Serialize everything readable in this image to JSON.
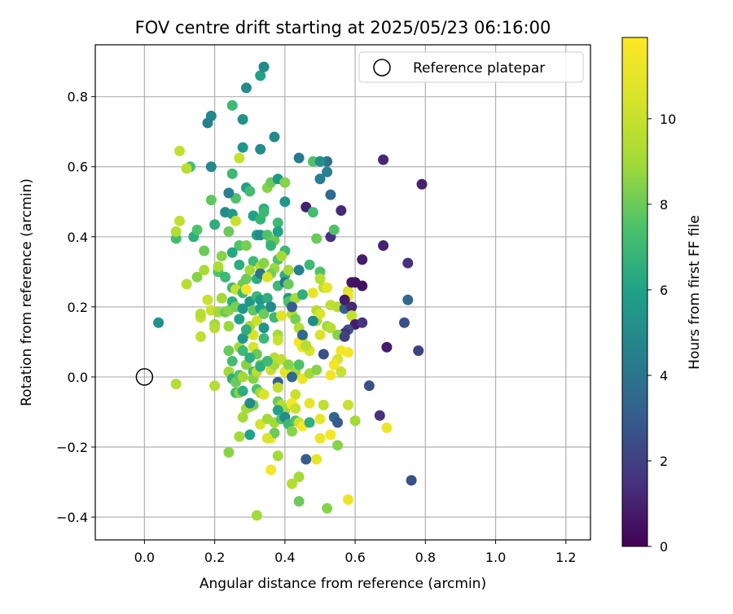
{
  "chart_data": {
    "type": "scatter",
    "title": "FOV centre drift starting at 2025/05/23 06:16:00",
    "xlabel": "Angular distance from reference (arcmin)",
    "ylabel": "Rotation from reference (arcmin)",
    "colorbar_label": "Hours from first FF file",
    "xlim": [
      -0.14,
      1.27
    ],
    "ylim": [
      -0.465,
      0.948
    ],
    "xticks": [
      "0.0",
      "0.2",
      "0.4",
      "0.6",
      "0.8",
      "1.0",
      "1.2"
    ],
    "yticks": [
      "−0.4",
      "−0.2",
      "0.0",
      "0.2",
      "0.4",
      "0.6",
      "0.8"
    ],
    "colorbar_range": [
      0,
      11.9
    ],
    "colorbar_ticks": [
      "0",
      "2",
      "4",
      "6",
      "8",
      "10"
    ],
    "colormap": "viridis",
    "grid": true,
    "legend": {
      "position": "top-right",
      "entries": [
        {
          "label": "Reference platepar",
          "marker": "open-circle"
        }
      ]
    },
    "reference_point": {
      "x": 0.0,
      "y": 0.0
    },
    "points": [
      [
        0.04,
        0.155,
        5.2
      ],
      [
        0.1,
        0.645,
        9.8
      ],
      [
        0.13,
        0.6,
        7.2
      ],
      [
        0.12,
        0.595,
        9.6
      ],
      [
        0.19,
        0.745,
        4.8
      ],
      [
        0.18,
        0.725,
        4.5
      ],
      [
        0.19,
        0.6,
        4.8
      ],
      [
        0.25,
        0.775,
        7.0
      ],
      [
        0.29,
        0.825,
        5.0
      ],
      [
        0.33,
        0.86,
        6.0
      ],
      [
        0.34,
        0.885,
        5.0
      ],
      [
        0.28,
        0.735,
        5.2
      ],
      [
        0.33,
        0.65,
        5.0
      ],
      [
        0.28,
        0.655,
        5.5
      ],
      [
        0.27,
        0.625,
        10.0
      ],
      [
        0.37,
        0.685,
        5.0
      ],
      [
        0.44,
        0.625,
        4.2
      ],
      [
        0.48,
        0.615,
        7.5
      ],
      [
        0.52,
        0.615,
        4.0
      ],
      [
        0.5,
        0.615,
        5.2
      ],
      [
        0.52,
        0.585,
        4.5
      ],
      [
        0.5,
        0.565,
        4.5
      ],
      [
        0.53,
        0.52,
        3.5
      ],
      [
        0.46,
        0.485,
        1.0
      ],
      [
        0.48,
        0.47,
        7.2
      ],
      [
        0.56,
        0.475,
        1.2
      ],
      [
        0.68,
        0.62,
        1.2
      ],
      [
        0.79,
        0.55,
        1.0
      ],
      [
        0.09,
        0.395,
        7.2
      ],
      [
        0.1,
        0.445,
        9.8
      ],
      [
        0.09,
        0.415,
        9.5
      ],
      [
        0.14,
        0.4,
        6.5
      ],
      [
        0.15,
        0.42,
        7.5
      ],
      [
        0.19,
        0.505,
        7.8
      ],
      [
        0.25,
        0.58,
        7.0
      ],
      [
        0.26,
        0.51,
        7.5
      ],
      [
        0.23,
        0.47,
        5.0
      ],
      [
        0.24,
        0.525,
        4.5
      ],
      [
        0.25,
        0.465,
        5.5
      ],
      [
        0.29,
        0.54,
        6.0
      ],
      [
        0.3,
        0.53,
        7.2
      ],
      [
        0.34,
        0.48,
        6.5
      ],
      [
        0.31,
        0.46,
        6.0
      ],
      [
        0.33,
        0.45,
        6.8
      ],
      [
        0.34,
        0.47,
        7.0
      ],
      [
        0.35,
        0.54,
        8.5
      ],
      [
        0.36,
        0.555,
        8.0
      ],
      [
        0.38,
        0.565,
        5.5
      ],
      [
        0.38,
        0.44,
        7.0
      ],
      [
        0.4,
        0.5,
        5.5
      ],
      [
        0.4,
        0.555,
        8.5
      ],
      [
        0.26,
        0.445,
        10.0
      ],
      [
        0.24,
        0.415,
        8.0
      ],
      [
        0.2,
        0.435,
        6.5
      ],
      [
        0.27,
        0.375,
        7.5
      ],
      [
        0.29,
        0.375,
        8.2
      ],
      [
        0.32,
        0.405,
        6.0
      ],
      [
        0.33,
        0.405,
        5.0
      ],
      [
        0.35,
        0.405,
        7.5
      ],
      [
        0.36,
        0.385,
        7.8
      ],
      [
        0.37,
        0.39,
        8.0
      ],
      [
        0.38,
        0.415,
        6.0
      ],
      [
        0.4,
        0.36,
        7.0
      ],
      [
        0.38,
        0.335,
        7.5
      ],
      [
        0.39,
        0.345,
        9.0
      ],
      [
        0.36,
        0.375,
        6.8
      ],
      [
        0.49,
        0.395,
        8.0
      ],
      [
        0.53,
        0.4,
        1.5
      ],
      [
        0.54,
        0.42,
        7.5
      ],
      [
        0.17,
        0.36,
        8.0
      ],
      [
        0.22,
        0.345,
        8.5
      ],
      [
        0.25,
        0.355,
        6.2
      ],
      [
        0.27,
        0.32,
        6.5
      ],
      [
        0.31,
        0.33,
        7.0
      ],
      [
        0.33,
        0.315,
        9.5
      ],
      [
        0.34,
        0.325,
        8.5
      ],
      [
        0.37,
        0.31,
        8.8
      ],
      [
        0.4,
        0.29,
        6.5
      ],
      [
        0.41,
        0.305,
        9.0
      ],
      [
        0.44,
        0.305,
        4.5
      ],
      [
        0.47,
        0.32,
        7.0
      ],
      [
        0.5,
        0.3,
        7.5
      ],
      [
        0.5,
        0.28,
        9.5
      ],
      [
        0.51,
        0.255,
        9.8
      ],
      [
        0.52,
        0.255,
        11.0
      ],
      [
        0.58,
        0.245,
        10.5
      ],
      [
        0.58,
        0.23,
        11.2
      ],
      [
        0.59,
        0.27,
        0.8
      ],
      [
        0.6,
        0.27,
        0.5
      ],
      [
        0.62,
        0.335,
        0.8
      ],
      [
        0.62,
        0.26,
        0.5
      ],
      [
        0.68,
        0.375,
        1.0
      ],
      [
        0.75,
        0.325,
        1.5
      ],
      [
        0.75,
        0.22,
        3.5
      ],
      [
        0.74,
        0.155,
        2.5
      ],
      [
        0.78,
        0.075,
        2.0
      ],
      [
        0.69,
        0.085,
        0.8
      ],
      [
        0.15,
        0.285,
        8.5
      ],
      [
        0.17,
        0.305,
        9.2
      ],
      [
        0.21,
        0.3,
        7.5
      ],
      [
        0.21,
        0.315,
        9.2
      ],
      [
        0.23,
        0.285,
        7.0
      ],
      [
        0.25,
        0.255,
        7.0
      ],
      [
        0.28,
        0.265,
        8.0
      ],
      [
        0.29,
        0.28,
        8.0
      ],
      [
        0.3,
        0.305,
        9.0
      ],
      [
        0.32,
        0.28,
        6.5
      ],
      [
        0.33,
        0.295,
        4.0
      ],
      [
        0.36,
        0.295,
        8.2
      ],
      [
        0.35,
        0.285,
        10.5
      ],
      [
        0.38,
        0.26,
        7.0
      ],
      [
        0.4,
        0.27,
        4.0
      ],
      [
        0.41,
        0.265,
        8.0
      ],
      [
        0.41,
        0.225,
        5.5
      ],
      [
        0.41,
        0.215,
        7.5
      ],
      [
        0.43,
        0.225,
        9.2
      ],
      [
        0.45,
        0.235,
        6.5
      ],
      [
        0.48,
        0.24,
        11.0
      ],
      [
        0.49,
        0.19,
        9.5
      ],
      [
        0.49,
        0.16,
        9.0
      ],
      [
        0.5,
        0.18,
        10.5
      ],
      [
        0.53,
        0.205,
        9.8
      ],
      [
        0.55,
        0.2,
        9.5
      ],
      [
        0.57,
        0.195,
        3.0
      ],
      [
        0.57,
        0.22,
        0.8
      ],
      [
        0.59,
        0.2,
        1.2
      ],
      [
        0.59,
        0.175,
        9.8
      ],
      [
        0.6,
        0.15,
        0.8
      ],
      [
        0.58,
        0.135,
        2.5
      ],
      [
        0.57,
        0.125,
        1.5
      ],
      [
        0.12,
        0.265,
        9.5
      ],
      [
        0.16,
        0.17,
        10.0
      ],
      [
        0.16,
        0.18,
        9.5
      ],
      [
        0.16,
        0.115,
        9.8
      ],
      [
        0.18,
        0.22,
        10.0
      ],
      [
        0.19,
        0.19,
        10.0
      ],
      [
        0.2,
        0.15,
        9.0
      ],
      [
        0.2,
        0.14,
        9.5
      ],
      [
        0.21,
        0.185,
        9.0
      ],
      [
        0.22,
        0.225,
        9.0
      ],
      [
        0.23,
        0.185,
        8.0
      ],
      [
        0.24,
        0.145,
        8.8
      ],
      [
        0.24,
        0.19,
        8.5
      ],
      [
        0.25,
        0.215,
        6.5
      ],
      [
        0.26,
        0.25,
        10.0
      ],
      [
        0.26,
        0.2,
        8.2
      ],
      [
        0.27,
        0.165,
        6.0
      ],
      [
        0.28,
        0.24,
        7.0
      ],
      [
        0.28,
        0.195,
        5.5
      ],
      [
        0.29,
        0.25,
        11.5
      ],
      [
        0.3,
        0.215,
        5.5
      ],
      [
        0.3,
        0.145,
        9.0
      ],
      [
        0.3,
        0.125,
        9.0
      ],
      [
        0.31,
        0.12,
        10.5
      ],
      [
        0.31,
        0.19,
        7.8
      ],
      [
        0.32,
        0.16,
        10.0
      ],
      [
        0.32,
        0.23,
        7.0
      ],
      [
        0.33,
        0.22,
        5.5
      ],
      [
        0.33,
        0.195,
        6.0
      ],
      [
        0.34,
        0.18,
        8.0
      ],
      [
        0.34,
        0.14,
        5.5
      ],
      [
        0.35,
        0.225,
        6.5
      ],
      [
        0.36,
        0.2,
        5.0
      ],
      [
        0.37,
        0.17,
        7.0
      ],
      [
        0.38,
        0.12,
        9.0
      ],
      [
        0.38,
        0.105,
        10.0
      ],
      [
        0.39,
        0.175,
        10.8
      ],
      [
        0.42,
        0.18,
        9.5
      ],
      [
        0.42,
        0.2,
        3.0
      ],
      [
        0.43,
        0.165,
        8.2
      ],
      [
        0.44,
        0.14,
        9.5
      ],
      [
        0.45,
        0.115,
        9.0
      ],
      [
        0.44,
        0.1,
        11.5
      ],
      [
        0.45,
        0.085,
        11.2
      ],
      [
        0.45,
        0.12,
        3.5
      ],
      [
        0.47,
        0.075,
        10.5
      ],
      [
        0.46,
        0.09,
        9.5
      ],
      [
        0.48,
        0.16,
        5.0
      ],
      [
        0.5,
        0.12,
        10.5
      ],
      [
        0.52,
        0.145,
        9.0
      ],
      [
        0.53,
        0.14,
        9.5
      ],
      [
        0.55,
        0.12,
        8.5
      ],
      [
        0.56,
        0.075,
        11.5
      ],
      [
        0.57,
        0.115,
        2.0
      ],
      [
        0.55,
        0.05,
        10.5
      ],
      [
        0.54,
        0.035,
        11.5
      ],
      [
        0.56,
        0.015,
        10.0
      ],
      [
        0.58,
        0.07,
        11.5
      ],
      [
        0.51,
        0.065,
        2.5
      ],
      [
        0.62,
        0.155,
        1.5
      ],
      [
        0.24,
        0.075,
        8.0
      ],
      [
        0.25,
        0.045,
        7.2
      ],
      [
        0.27,
        0.085,
        9.0
      ],
      [
        0.28,
        0.075,
        7.0
      ],
      [
        0.28,
        0.11,
        5.5
      ],
      [
        0.29,
        0.135,
        6.5
      ],
      [
        0.31,
        0.085,
        10.5
      ],
      [
        0.32,
        0.065,
        8.0
      ],
      [
        0.33,
        0.035,
        8.5
      ],
      [
        0.34,
        0.11,
        7.0
      ],
      [
        0.36,
        0.02,
        10.0
      ],
      [
        0.37,
        0.035,
        9.0
      ],
      [
        0.37,
        0.055,
        9.5
      ],
      [
        0.39,
        0.05,
        9.8
      ],
      [
        0.4,
        0.015,
        11.0
      ],
      [
        0.41,
        0.035,
        8.5
      ],
      [
        0.43,
        0.015,
        9.0
      ],
      [
        0.44,
        0.035,
        7.5
      ],
      [
        0.42,
        0.0,
        3.5
      ],
      [
        0.38,
        -0.015,
        3.0
      ],
      [
        0.45,
        -0.005,
        11.2
      ],
      [
        0.47,
        0.01,
        9.0
      ],
      [
        0.49,
        0.02,
        8.5
      ],
      [
        0.53,
        0.005,
        11.5
      ],
      [
        0.24,
        0.015,
        9.0
      ],
      [
        0.25,
        -0.005,
        6.5
      ],
      [
        0.26,
        -0.015,
        8.0
      ],
      [
        0.27,
        0.005,
        7.5
      ],
      [
        0.28,
        0.0,
        9.0
      ],
      [
        0.29,
        0.035,
        8.5
      ],
      [
        0.3,
        0.055,
        6.5
      ],
      [
        0.31,
        0.015,
        7.0
      ],
      [
        0.31,
        -0.005,
        8.5
      ],
      [
        0.32,
        0.015,
        9.5
      ],
      [
        0.33,
        0.03,
        6.5
      ],
      [
        0.35,
        0.045,
        7.0
      ],
      [
        0.2,
        -0.025,
        9.5
      ],
      [
        0.26,
        -0.045,
        7.0
      ],
      [
        0.27,
        -0.045,
        8.5
      ],
      [
        0.28,
        -0.04,
        6.5
      ],
      [
        0.32,
        -0.035,
        7.5
      ],
      [
        0.33,
        -0.045,
        9.0
      ],
      [
        0.34,
        -0.05,
        10.5
      ],
      [
        0.38,
        -0.07,
        8.0
      ],
      [
        0.39,
        -0.08,
        9.5
      ],
      [
        0.4,
        -0.095,
        9.0
      ],
      [
        0.42,
        -0.08,
        11.0
      ],
      [
        0.43,
        -0.05,
        10.0
      ],
      [
        0.42,
        -0.075,
        11.5
      ],
      [
        0.43,
        -0.09,
        10.0
      ],
      [
        0.47,
        -0.075,
        11.0
      ],
      [
        0.51,
        -0.08,
        9.8
      ],
      [
        0.58,
        -0.08,
        10.0
      ],
      [
        0.09,
        -0.02,
        9.5
      ],
      [
        0.31,
        -0.08,
        8.0
      ],
      [
        0.3,
        -0.085,
        8.5
      ],
      [
        0.29,
        -0.09,
        9.0
      ],
      [
        0.28,
        -0.115,
        9.0
      ],
      [
        0.3,
        -0.075,
        5.0
      ],
      [
        0.33,
        -0.135,
        10.5
      ],
      [
        0.35,
        -0.12,
        9.0
      ],
      [
        0.36,
        -0.175,
        11.5
      ],
      [
        0.37,
        -0.13,
        9.0
      ],
      [
        0.38,
        -0.095,
        6.0
      ],
      [
        0.37,
        -0.16,
        8.0
      ],
      [
        0.39,
        -0.12,
        7.5
      ],
      [
        0.4,
        -0.115,
        5.0
      ],
      [
        0.41,
        -0.135,
        7.0
      ],
      [
        0.42,
        -0.155,
        8.5
      ],
      [
        0.43,
        -0.125,
        7.5
      ],
      [
        0.44,
        -0.13,
        10.0
      ],
      [
        0.45,
        -0.14,
        11.5
      ],
      [
        0.47,
        -0.13,
        6.5
      ],
      [
        0.5,
        -0.12,
        11.0
      ],
      [
        0.53,
        -0.165,
        11.5
      ],
      [
        0.5,
        -0.175,
        11.2
      ],
      [
        0.54,
        -0.115,
        3.5
      ],
      [
        0.55,
        -0.13,
        3.0
      ],
      [
        0.6,
        -0.125,
        9.0
      ],
      [
        0.55,
        -0.195,
        8.5
      ],
      [
        0.67,
        -0.11,
        1.5
      ],
      [
        0.69,
        -0.145,
        11.2
      ],
      [
        0.64,
        -0.025,
        2.5
      ],
      [
        0.35,
        -0.175,
        10.5
      ],
      [
        0.27,
        -0.17,
        9.0
      ],
      [
        0.3,
        -0.165,
        6.0
      ],
      [
        0.24,
        -0.215,
        8.5
      ],
      [
        0.46,
        -0.235,
        3.0
      ],
      [
        0.49,
        -0.235,
        11.0
      ],
      [
        0.36,
        -0.265,
        11.5
      ],
      [
        0.38,
        -0.225,
        9.0
      ],
      [
        0.42,
        -0.305,
        9.5
      ],
      [
        0.44,
        -0.285,
        9.0
      ],
      [
        0.44,
        -0.355,
        8.0
      ],
      [
        0.52,
        -0.375,
        8.5
      ],
      [
        0.58,
        -0.35,
        11.2
      ],
      [
        0.32,
        -0.395,
        9.0
      ],
      [
        0.76,
        -0.295,
        2.5
      ],
      [
        0.38,
        -0.03,
        9.8
      ]
    ]
  }
}
